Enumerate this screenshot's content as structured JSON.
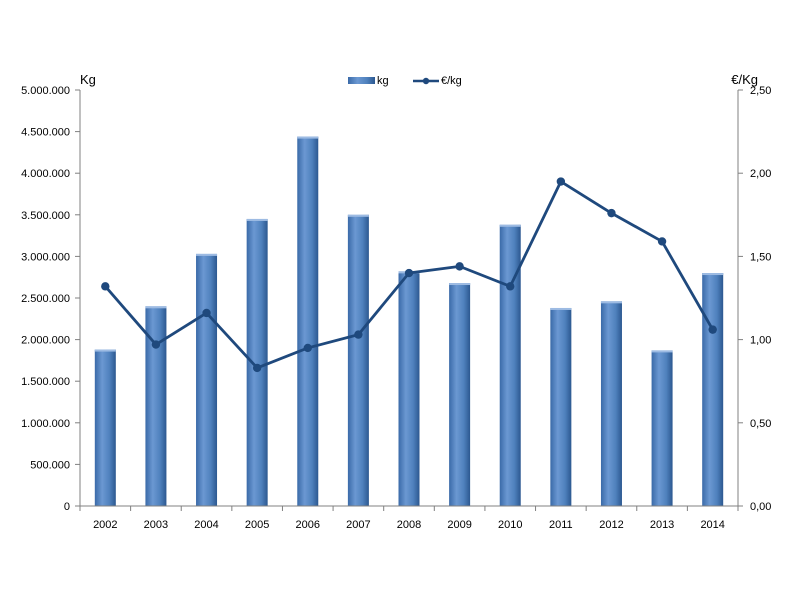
{
  "chart_data": {
    "type": "bar",
    "categories": [
      "2002",
      "2003",
      "2004",
      "2005",
      "2006",
      "2007",
      "2008",
      "2009",
      "2010",
      "2011",
      "2012",
      "2013",
      "2014"
    ],
    "series": [
      {
        "name": "kg",
        "type": "bar",
        "axis": "left",
        "color": "#4f81bd",
        "values": [
          1880000,
          2400000,
          3030000,
          3450000,
          4440000,
          3500000,
          2820000,
          2680000,
          3380000,
          2380000,
          2460000,
          1870000,
          2800000
        ]
      },
      {
        "name": "€/kg",
        "type": "line",
        "axis": "right",
        "color": "#1f497d",
        "values": [
          1.32,
          0.97,
          1.16,
          0.83,
          0.95,
          1.03,
          1.4,
          1.44,
          1.32,
          1.95,
          1.76,
          1.59,
          1.06
        ]
      }
    ],
    "ylabel": "Kg",
    "y2label": "€/Kg",
    "ylim": [
      0,
      5000000
    ],
    "y2lim": [
      0,
      2.5
    ],
    "yticks": [
      "0",
      "500.000",
      "1.000.000",
      "1.500.000",
      "2.000.000",
      "2.500.000",
      "3.000.000",
      "3.500.000",
      "4.000.000",
      "4.500.000",
      "5.000.000"
    ],
    "y2ticks": [
      "0,00",
      "0,50",
      "1,00",
      "1,50",
      "2,00",
      "2,50"
    ],
    "legend": "top-center",
    "grid": false
  }
}
